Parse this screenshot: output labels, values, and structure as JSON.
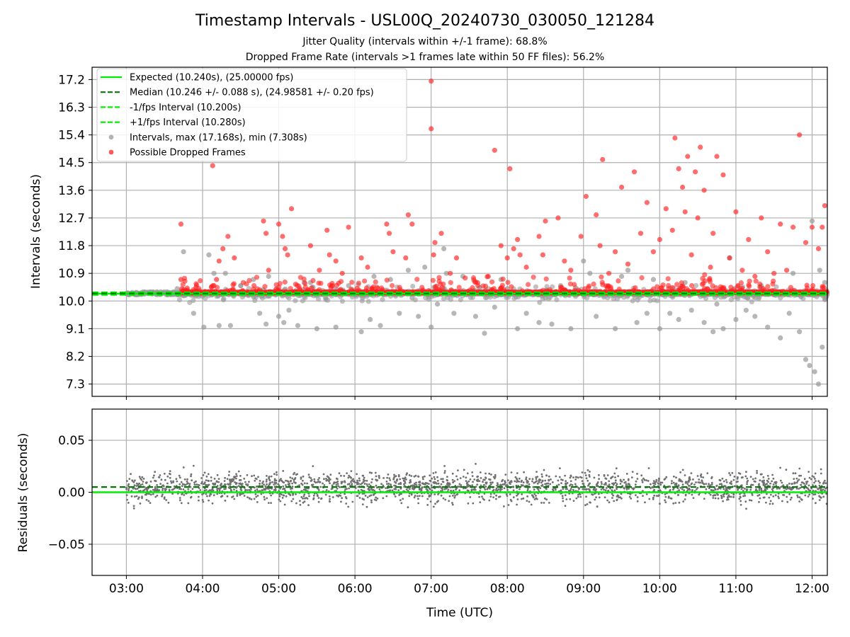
{
  "title": "Timestamp Intervals - USL00Q_20240730_030050_121284",
  "subtitle_jitter": "Jitter Quality (intervals within +/-1 frame): 68.8%",
  "subtitle_dropped": "Dropped Frame Rate (intervals >1 frames late within 50 FF files): 56.2%",
  "colors": {
    "expected": "#00ee00",
    "median": "#007a00",
    "fps_bound": "#00ee00",
    "intervals": "#999999",
    "dropped": "#ff2020",
    "residuals": "#707070"
  },
  "chart_data": [
    {
      "type": "scatter",
      "panel": "intervals",
      "xlabel": "",
      "ylabel": "Intervals (seconds)",
      "xlim": [
        "02:33",
        "12:12"
      ],
      "ylim": [
        6.9,
        17.6
      ],
      "yticks": [
        "7.3",
        "8.2",
        "9.1",
        "10.0",
        "10.9",
        "11.8",
        "12.7",
        "13.6",
        "14.5",
        "15.4",
        "16.3",
        "17.2"
      ],
      "grid": true,
      "legend_position": "top-left",
      "legend": [
        {
          "label": "Expected (10.240s), (25.00000 fps)",
          "style": "solid",
          "color": "#00ee00"
        },
        {
          "label": "Median (10.246 +/- 0.088 s), (24.98581 +/- 0.20 fps)",
          "style": "dashed",
          "color": "#007a00"
        },
        {
          "label": "-1/fps Interval (10.200s)",
          "style": "dashed",
          "color": "#00ee00"
        },
        {
          "label": "+1/fps Interval (10.280s)",
          "style": "dashed",
          "color": "#00ee00"
        },
        {
          "label": "Intervals, max (17.168s), min (7.308s)",
          "style": "marker",
          "color": "#999999"
        },
        {
          "label": "Possible Dropped Frames",
          "style": "marker",
          "color": "#ff2020"
        }
      ],
      "lines": {
        "expected": 10.24,
        "median": 10.246,
        "minus_1fps": 10.2,
        "plus_1fps": 10.28
      },
      "x_range": [
        "03:00",
        "12:12"
      ],
      "baseline_band": [
        10.2,
        10.3
      ],
      "max_interval": 17.168,
      "min_interval": 7.308,
      "series": [
        {
          "name": "Intervals, max (17.168s), min (7.308s)",
          "x": [
            "03:45",
            "03:53",
            "04:01",
            "04:05",
            "04:09",
            "04:13",
            "04:22",
            "04:30",
            "04:45",
            "04:50",
            "04:52",
            "05:00",
            "05:04",
            "05:08",
            "05:15",
            "05:20",
            "05:30",
            "05:38",
            "05:45",
            "05:55",
            "06:05",
            "06:12",
            "06:20",
            "06:28",
            "06:35",
            "06:42",
            "06:50",
            "07:00",
            "07:10",
            "07:18",
            "07:25",
            "07:35",
            "07:42",
            "07:50",
            "08:00",
            "08:08",
            "08:15",
            "08:25",
            "08:35",
            "08:42",
            "08:50",
            "09:00",
            "09:10",
            "09:18",
            "09:25",
            "09:35",
            "09:42",
            "09:50",
            "10:00",
            "10:08",
            "10:15",
            "10:25",
            "10:35",
            "10:42",
            "10:50",
            "11:00",
            "11:08",
            "11:15",
            "11:25",
            "11:35",
            "11:42",
            "11:50",
            "11:55",
            "11:58",
            "12:00",
            "12:02",
            "12:05",
            "12:08",
            "12:10",
            "03:40",
            "04:18",
            "04:40",
            "05:25",
            "06:15",
            "06:45",
            "07:05",
            "07:55",
            "08:30",
            "09:05",
            "09:30",
            "10:20",
            "10:45",
            "11:20",
            "11:45",
            "12:06",
            "07:12",
            "06:55",
            "09:55",
            "10:55"
          ],
          "values": [
            11.6,
            9.6,
            9.15,
            11.5,
            10.9,
            9.2,
            9.2,
            10.5,
            9.6,
            9.25,
            10.8,
            9.5,
            9.3,
            9.7,
            9.2,
            10.6,
            9.1,
            10.3,
            9.15,
            10.5,
            9.0,
            9.4,
            9.2,
            10.7,
            9.6,
            11.0,
            9.5,
            9.15,
            11.7,
            9.6,
            10.8,
            9.5,
            8.95,
            9.8,
            10.4,
            9.1,
            9.6,
            9.3,
            9.25,
            10.5,
            9.1,
            11.3,
            9.5,
            10.2,
            9.1,
            11.0,
            9.3,
            9.6,
            9.1,
            9.6,
            9.4,
            9.7,
            9.3,
            9.0,
            9.1,
            9.4,
            9.7,
            9.5,
            9.15,
            8.8,
            9.6,
            9.0,
            8.1,
            7.9,
            12.6,
            7.7,
            7.3,
            8.5,
            10.6,
            10.4,
            10.9,
            10.7,
            10.6,
            10.8,
            10.1,
            9.9,
            10.7,
            10.1,
            10.9,
            10.8,
            10.6,
            9.9,
            10.5,
            10.9,
            11.0,
            10.9,
            11.1,
            10.7,
            11.4
          ]
        },
        {
          "name": "Possible Dropped Frames",
          "x": [
            "03:43",
            "03:43",
            "04:08",
            "04:09",
            "04:11",
            "04:13",
            "04:16",
            "04:20",
            "04:25",
            "04:48",
            "04:50",
            "04:52",
            "05:00",
            "05:03",
            "05:05",
            "05:07",
            "05:10",
            "05:25",
            "05:32",
            "05:38",
            "05:40",
            "05:45",
            "05:50",
            "05:55",
            "06:05",
            "06:10",
            "06:25",
            "06:27",
            "06:30",
            "06:40",
            "06:42",
            "06:45",
            "07:00",
            "07:00",
            "07:02",
            "07:03",
            "07:08",
            "07:15",
            "07:20",
            "07:45",
            "07:50",
            "07:55",
            "08:00",
            "08:02",
            "08:05",
            "08:08",
            "08:10",
            "08:15",
            "08:25",
            "08:28",
            "08:30",
            "08:40",
            "08:45",
            "08:50",
            "08:58",
            "09:02",
            "09:10",
            "09:13",
            "09:15",
            "09:20",
            "09:25",
            "09:30",
            "09:35",
            "09:40",
            "09:45",
            "09:50",
            "09:55",
            "10:00",
            "10:05",
            "10:10",
            "10:12",
            "10:15",
            "10:18",
            "10:20",
            "10:22",
            "10:25",
            "10:28",
            "10:30",
            "10:32",
            "10:35",
            "10:40",
            "10:42",
            "10:45",
            "10:50",
            "10:55",
            "11:00",
            "11:05",
            "11:10",
            "11:15",
            "11:20",
            "11:25",
            "11:30",
            "11:35",
            "11:40",
            "11:45",
            "11:50",
            "11:55",
            "12:00",
            "12:05",
            "12:08",
            "12:10"
          ],
          "values": [
            12.5,
            10.7,
            14.4,
            10.5,
            10.7,
            11.3,
            11.7,
            12.1,
            11.4,
            12.6,
            12.2,
            11.0,
            12.5,
            12.1,
            11.7,
            11.5,
            13.0,
            11.8,
            11.0,
            12.3,
            11.5,
            11.3,
            10.9,
            12.4,
            11.4,
            11.1,
            12.5,
            12.2,
            11.6,
            11.4,
            12.8,
            12.5,
            17.15,
            15.6,
            11.5,
            11.9,
            12.2,
            10.9,
            11.4,
            10.8,
            14.9,
            11.8,
            11.4,
            14.3,
            11.7,
            12.0,
            11.5,
            11.1,
            12.1,
            11.5,
            12.6,
            12.7,
            11.3,
            11.0,
            12.1,
            13.4,
            12.8,
            11.8,
            14.6,
            10.9,
            11.6,
            13.7,
            11.2,
            14.2,
            12.2,
            13.2,
            11.6,
            12.0,
            13.0,
            12.3,
            15.3,
            14.3,
            13.7,
            12.9,
            14.7,
            11.5,
            14.2,
            12.7,
            15.0,
            13.6,
            11.1,
            12.2,
            14.7,
            14.1,
            11.4,
            12.9,
            11.0,
            12.0,
            10.8,
            12.7,
            11.6,
            10.9,
            12.5,
            11.0,
            12.4,
            15.4,
            11.9,
            12.4,
            11.7,
            12.4,
            13.1
          ]
        }
      ]
    },
    {
      "type": "scatter",
      "panel": "residuals",
      "xlabel": "Time (UTC)",
      "ylabel": "Residuals (seconds)",
      "xlim": [
        "02:33",
        "12:12"
      ],
      "ylim": [
        -0.08,
        0.08
      ],
      "yticks": [
        "−0.05",
        "0.00",
        "0.05"
      ],
      "xticks": [
        "03:00",
        "04:00",
        "05:00",
        "06:00",
        "07:00",
        "08:00",
        "09:00",
        "10:00",
        "11:00",
        "12:00"
      ],
      "grid": true,
      "lines": {
        "zero": 0.0,
        "median_offset": 0.005
      },
      "x_range": [
        "03:00",
        "12:12"
      ],
      "residual_range": [
        -0.075,
        0.08
      ],
      "n_points": 2200
    }
  ]
}
